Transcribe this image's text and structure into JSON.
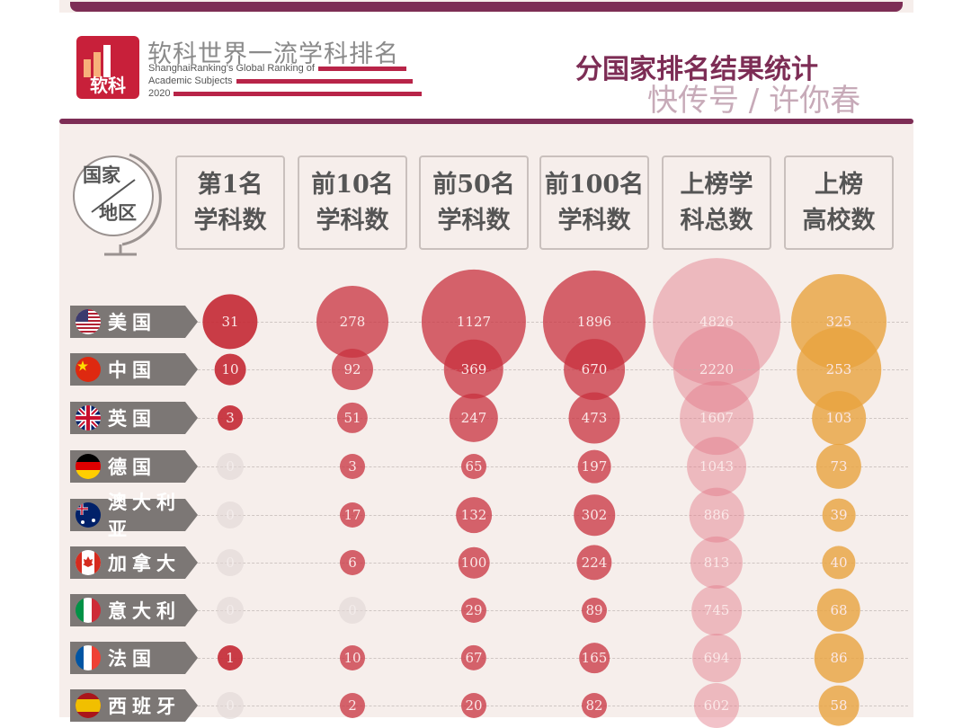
{
  "header": {
    "brand_cn": "软科世界一流学科排名",
    "brand_en_1": "ShanghaiRanking's Global Ranking of",
    "brand_en_2": "Academic Subjects",
    "year": "2020",
    "logo_text": "软科",
    "title": "分国家排名结果统计"
  },
  "corner_label": {
    "line1": "国家",
    "line2": "地区"
  },
  "colors": {
    "accent": "#7d2d55",
    "red": "#c8323f",
    "orange": "#e8a23f",
    "zero": "#e9e1df"
  },
  "watermark": "快传号 / 许你春",
  "chart_data": {
    "type": "bubble-table",
    "columns": [
      {
        "line1": "第1名",
        "line2": "学科数"
      },
      {
        "line1": "前10名",
        "line2": "学科数"
      },
      {
        "line1": "前50名",
        "line2": "学科数"
      },
      {
        "line1": "前100名",
        "line2": "学科数"
      },
      {
        "line1": "上榜学",
        "line2": "科总数"
      },
      {
        "line1": "上榜",
        "line2": "高校数"
      }
    ],
    "rows": [
      {
        "country": "美国",
        "flag": "us",
        "values": [
          31,
          278,
          1127,
          1896,
          4826,
          325
        ]
      },
      {
        "country": "中国",
        "flag": "cn",
        "values": [
          10,
          92,
          369,
          670,
          2220,
          253
        ]
      },
      {
        "country": "英国",
        "flag": "uk",
        "values": [
          3,
          51,
          247,
          473,
          1607,
          103
        ]
      },
      {
        "country": "德国",
        "flag": "de",
        "values": [
          0,
          3,
          65,
          197,
          1043,
          73
        ]
      },
      {
        "country": "澳大利亚",
        "flag": "au",
        "values": [
          0,
          17,
          132,
          302,
          886,
          39
        ]
      },
      {
        "country": "加拿大",
        "flag": "ca",
        "values": [
          0,
          6,
          100,
          224,
          813,
          40
        ]
      },
      {
        "country": "意大利",
        "flag": "it",
        "values": [
          0,
          0,
          29,
          89,
          745,
          68
        ]
      },
      {
        "country": "法国",
        "flag": "fr",
        "values": [
          1,
          10,
          67,
          165,
          694,
          86
        ]
      },
      {
        "country": "西班牙",
        "flag": "es",
        "values": [
          0,
          2,
          20,
          82,
          602,
          58
        ]
      }
    ]
  }
}
